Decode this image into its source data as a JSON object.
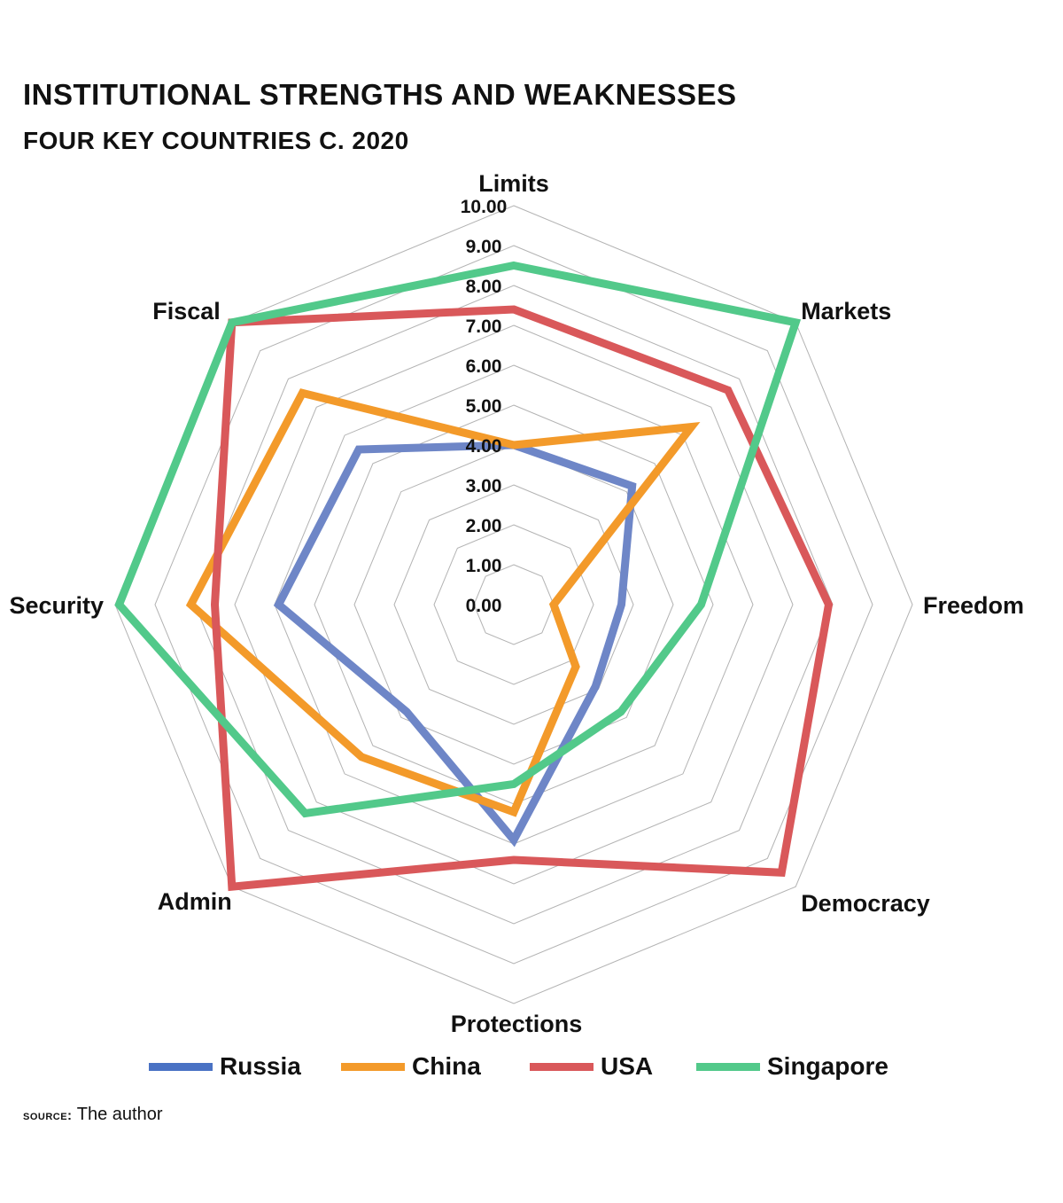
{
  "title": "INSTITUTIONAL STRENGTHS AND WEAKNESSES",
  "subtitle": "FOUR KEY COUNTRIES C. 2020",
  "source": {
    "label": "SOURCE:",
    "text": "The author"
  },
  "chart_data": {
    "type": "radar",
    "title": "INSTITUTIONAL STRENGTHS AND WEAKNESSES",
    "subtitle": "FOUR KEY COUNTRIES C. 2020",
    "categories": [
      "Limits",
      "Markets",
      "Freedom",
      "Democracy",
      "Protections",
      "Admin",
      "Security",
      "Fiscal"
    ],
    "rmin": 0,
    "rmax": 10,
    "ticks": [
      "0.00",
      "1.00",
      "2.00",
      "3.00",
      "4.00",
      "5.00",
      "6.00",
      "7.00",
      "8.00",
      "9.00",
      "10.00"
    ],
    "grid": true,
    "legend_position": "bottom",
    "series": [
      {
        "name": "Russia",
        "color": "#6e86c7",
        "legend_color": "#4a72c4",
        "values": [
          4.0,
          4.2,
          2.7,
          2.9,
          5.9,
          3.8,
          5.9,
          5.5
        ]
      },
      {
        "name": "China",
        "color": "#f39a2a",
        "legend_color": "#f39a2a",
        "values": [
          4.0,
          6.3,
          1.0,
          2.2,
          5.2,
          5.4,
          8.1,
          7.5
        ]
      },
      {
        "name": "USA",
        "color": "#d9585a",
        "legend_color": "#d9585a",
        "values": [
          7.4,
          7.6,
          7.9,
          9.5,
          6.4,
          10.0,
          7.5,
          10.0
        ]
      },
      {
        "name": "Singapore",
        "color": "#52c98a",
        "legend_color": "#52c98a",
        "values": [
          8.5,
          10.0,
          4.7,
          3.8,
          4.5,
          7.4,
          9.9,
          10.0
        ]
      }
    ]
  }
}
